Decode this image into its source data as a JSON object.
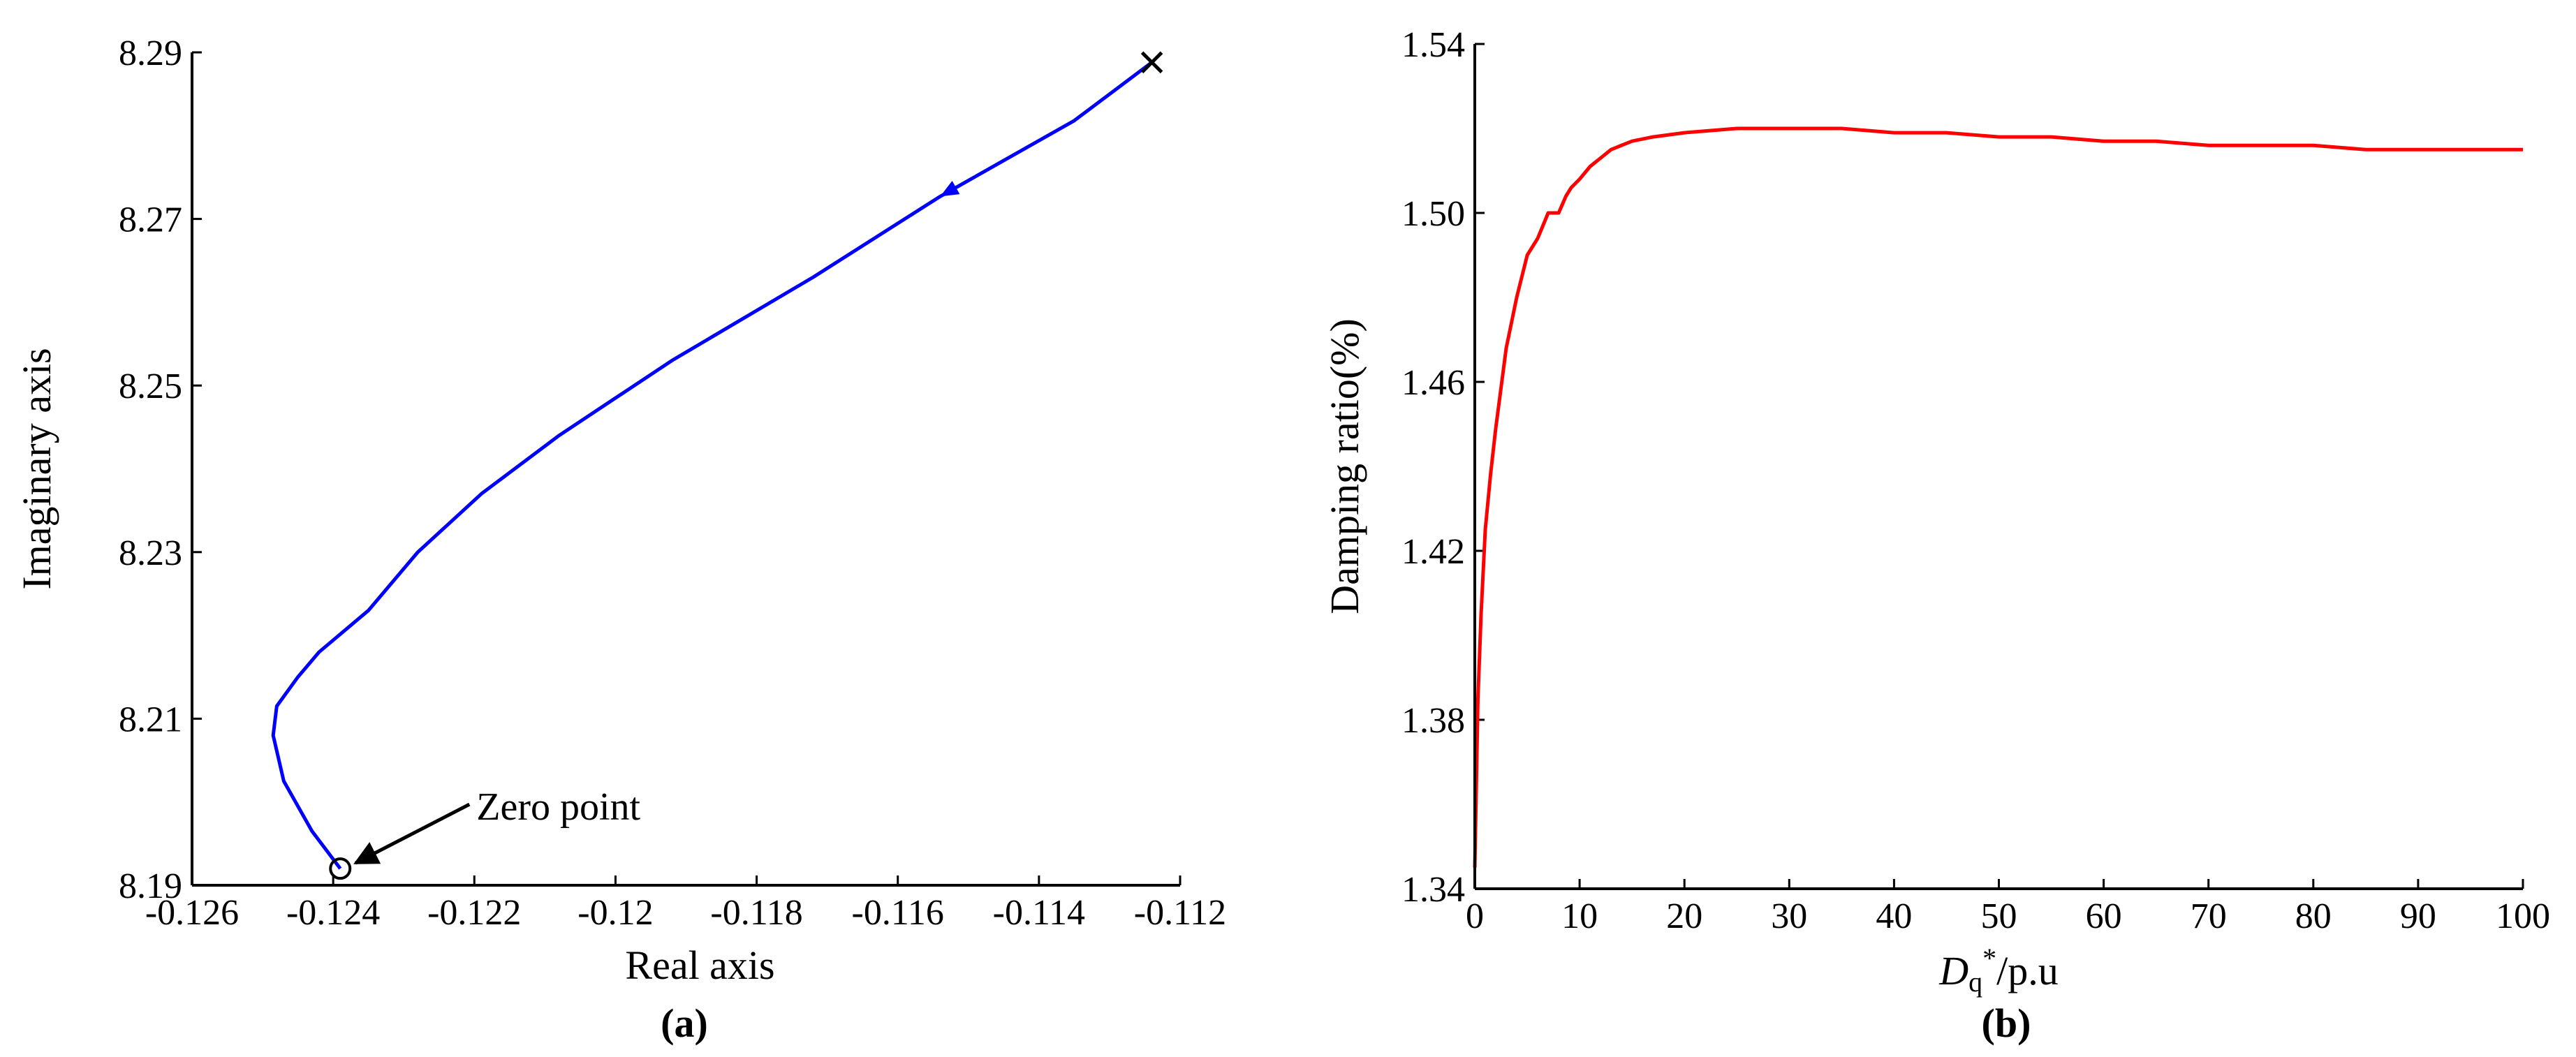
{
  "chart_data": [
    {
      "type": "line",
      "panel_label": "(a)",
      "xlabel": "Real axis",
      "ylabel": "Imaginary axis",
      "xlim": [
        -0.126,
        -0.112
      ],
      "ylim": [
        8.19,
        8.29
      ],
      "xticks": [
        "-0.126",
        "-0.124",
        "-0.122",
        "-0.12",
        "-0.118",
        "-0.116",
        "-0.114",
        "-0.112"
      ],
      "yticks": [
        "8.19",
        "8.21",
        "8.23",
        "8.25",
        "8.27",
        "8.29"
      ],
      "series": [
        {
          "color": "#0000ff",
          "x": [
            -0.1124,
            -0.1135,
            -0.1154,
            -0.1172,
            -0.1192,
            -0.1208,
            -0.1219,
            -0.1228,
            -0.1235,
            -0.1242,
            -0.1245,
            -0.1248,
            -0.12485,
            -0.1247,
            -0.1243,
            -0.1239
          ],
          "y": [
            8.2888,
            8.2818,
            8.2727,
            8.263,
            8.253,
            8.244,
            8.237,
            8.23,
            8.223,
            8.218,
            8.215,
            8.2115,
            8.208,
            8.2025,
            8.1965,
            8.192
          ]
        }
      ],
      "direction_arrow_at": {
        "x": -0.1154,
        "y": 8.2727
      },
      "pole_marker": {
        "symbol": "cross",
        "x": -0.1124,
        "y": 8.2888
      },
      "zero_marker": {
        "symbol": "circle",
        "x": -0.1239,
        "y": 8.192
      },
      "annotation": {
        "text": "Zero point",
        "x": -0.1239,
        "y": 8.192
      }
    },
    {
      "type": "line",
      "panel_label": "(b)",
      "xlabel_main": "D",
      "xlabel_sub": "q",
      "xlabel_sup": "*",
      "xlabel_unit": "/p.u",
      "ylabel": "Damping ratio(%)",
      "xlim": [
        0,
        100
      ],
      "ylim": [
        1.34,
        1.54
      ],
      "xticks": [
        "0",
        "10",
        "20",
        "30",
        "40",
        "50",
        "60",
        "70",
        "80",
        "90",
        "100"
      ],
      "yticks": [
        "1.34",
        "1.38",
        "1.42",
        "1.46",
        "1.50",
        "1.54"
      ],
      "series": [
        {
          "color": "#ff0000",
          "x": [
            0,
            0.3,
            0.6,
            1,
            1.5,
            2,
            3,
            4,
            5,
            6,
            7,
            8,
            8.7,
            9.2,
            10,
            11,
            12,
            13,
            14,
            15,
            17,
            20,
            25,
            30,
            35,
            40,
            45,
            50,
            55,
            60,
            65,
            70,
            75,
            80,
            85,
            90,
            95,
            100
          ],
          "y": [
            1.345,
            1.385,
            1.405,
            1.425,
            1.438,
            1.449,
            1.468,
            1.48,
            1.49,
            1.494,
            1.5,
            1.5,
            1.504,
            1.506,
            1.508,
            1.511,
            1.513,
            1.515,
            1.516,
            1.517,
            1.518,
            1.519,
            1.52,
            1.52,
            1.52,
            1.519,
            1.519,
            1.518,
            1.518,
            1.517,
            1.517,
            1.516,
            1.516,
            1.516,
            1.515,
            1.515,
            1.515,
            1.515
          ]
        }
      ]
    }
  ]
}
